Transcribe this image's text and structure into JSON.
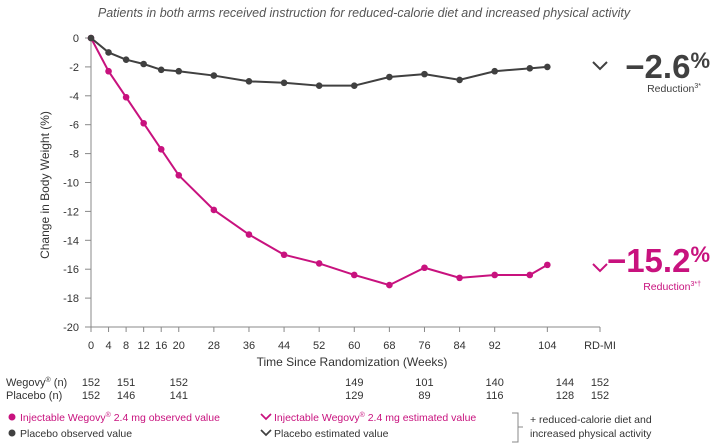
{
  "chart_data": {
    "type": "line",
    "title": "Patients in both arms received instruction for reduced-calorie diet and increased physical activity",
    "ylabel": "Change in Body Weight (%)",
    "xlabel": "Time Since Randomization (Weeks)",
    "ylim": [
      -20,
      0
    ],
    "y_ticks": [
      "0",
      "-2",
      "-4",
      "-6",
      "-8",
      "-10",
      "-12",
      "-14",
      "-16",
      "-18",
      "-20"
    ],
    "x_ticks": [
      "0",
      "4",
      "8",
      "12",
      "16",
      "20",
      "28",
      "36",
      "44",
      "52",
      "60",
      "68",
      "76",
      "84",
      "92",
      "104",
      "RD-MI"
    ],
    "x_tick_values": [
      0,
      4,
      8,
      12,
      16,
      20,
      28,
      36,
      44,
      52,
      60,
      68,
      76,
      84,
      92,
      104,
      116
    ],
    "series": [
      {
        "name": "Injectable Wegovy® 2.4 mg observed value",
        "color": "#c8127e",
        "x": [
          0,
          4,
          8,
          12,
          16,
          20,
          28,
          36,
          44,
          52,
          60,
          68,
          76,
          84,
          92,
          100,
          104
        ],
        "values": [
          0,
          -2.3,
          -4.1,
          -5.9,
          -7.7,
          -9.5,
          -11.9,
          -13.6,
          -15.0,
          -15.6,
          -16.4,
          -17.1,
          -15.9,
          -16.6,
          -16.4,
          -16.4,
          -15.7
        ]
      },
      {
        "name": "Placebo observed value",
        "color": "#404040",
        "x": [
          0,
          4,
          8,
          12,
          16,
          20,
          28,
          36,
          44,
          52,
          60,
          68,
          76,
          84,
          92,
          100,
          104
        ],
        "values": [
          0,
          -1.0,
          -1.5,
          -1.8,
          -2.2,
          -2.3,
          -2.6,
          -3.0,
          -3.1,
          -3.3,
          -3.3,
          -2.7,
          -2.5,
          -2.9,
          -2.3,
          -2.1,
          -2.0
        ]
      }
    ],
    "results": [
      {
        "value": "−2.6",
        "unit": "%",
        "label": "Reduction",
        "sup": "3*",
        "color": "#404040"
      },
      {
        "value": "−15.2",
        "unit": "%",
        "label": "Reduction",
        "sup": "3*†",
        "color": "#c8127e"
      }
    ],
    "n_table": {
      "columns": [
        0,
        8,
        20,
        60,
        76,
        92,
        108,
        116
      ],
      "rows": [
        {
          "label": "Wegovy",
          "reg": "®",
          "suffix": " (n)",
          "values": [
            "152",
            "151",
            "152",
            "149",
            "101",
            "140",
            "144",
            "152"
          ]
        },
        {
          "label": "Placebo (n)",
          "values": [
            "152",
            "146",
            "141",
            "129",
            "89",
            "116",
            "128",
            "152"
          ]
        }
      ]
    },
    "legend": {
      "items": [
        {
          "text": "Injectable Wegovy",
          "reg": "®",
          "rest": " 2.4 mg observed value",
          "marker": "dot",
          "color": "#c8127e"
        },
        {
          "text": "Placebo observed value",
          "marker": "dot",
          "color": "#404040"
        },
        {
          "text": "Injectable Wegovy",
          "reg": "®",
          "rest": " 2.4 mg estimated value",
          "marker": "chevron",
          "color": "#c8127e"
        },
        {
          "text": "Placebo estimated value",
          "marker": "chevron",
          "color": "#404040"
        }
      ],
      "note_line1": "+ reduced-calorie diet and",
      "note_line2": "increased physical activity"
    }
  }
}
